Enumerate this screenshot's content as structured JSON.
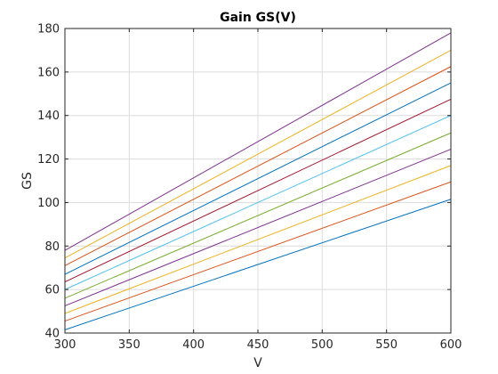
{
  "chart_data": {
    "type": "line",
    "title": "Gain GS(V)",
    "xlabel": "V",
    "ylabel": "GS",
    "xlim": [
      300,
      600
    ],
    "ylim": [
      40,
      180
    ],
    "xticks": [
      300,
      350,
      400,
      450,
      500,
      550,
      600
    ],
    "yticks": [
      40,
      60,
      80,
      100,
      120,
      140,
      160,
      180
    ],
    "grid": true,
    "series": [
      {
        "color": "#0072BD",
        "x": [
          300,
          600
        ],
        "y": [
          41.5,
          101.5
        ]
      },
      {
        "color": "#D95319",
        "x": [
          300,
          600
        ],
        "y": [
          45.5,
          109.5
        ]
      },
      {
        "color": "#EDB120",
        "x": [
          300,
          600
        ],
        "y": [
          49,
          117
        ]
      },
      {
        "color": "#7E2F8E",
        "x": [
          300,
          600
        ],
        "y": [
          52.5,
          124.5
        ]
      },
      {
        "color": "#77AC30",
        "x": [
          300,
          600
        ],
        "y": [
          56,
          132
        ]
      },
      {
        "color": "#4DBEEE",
        "x": [
          300,
          600
        ],
        "y": [
          60,
          140
        ]
      },
      {
        "color": "#A2142F",
        "x": [
          300,
          600
        ],
        "y": [
          63.5,
          147.5
        ]
      },
      {
        "color": "#0072BD",
        "x": [
          300,
          600
        ],
        "y": [
          67,
          155
        ]
      },
      {
        "color": "#D95319",
        "x": [
          300,
          600
        ],
        "y": [
          71,
          162.5
        ]
      },
      {
        "color": "#EDB120",
        "x": [
          300,
          600
        ],
        "y": [
          74.5,
          170
        ]
      },
      {
        "color": "#7E2F8E",
        "x": [
          300,
          600
        ],
        "y": [
          78,
          178
        ]
      }
    ]
  }
}
